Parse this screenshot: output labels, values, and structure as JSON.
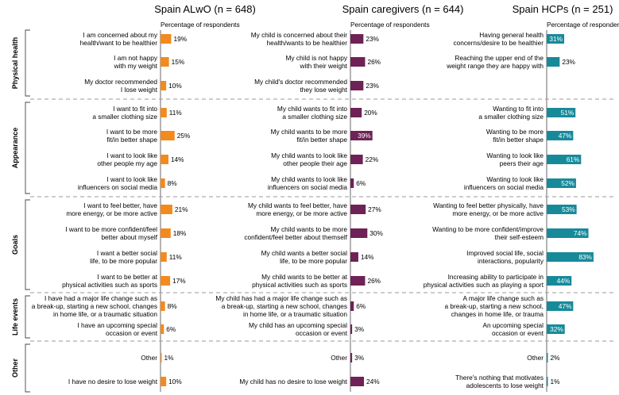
{
  "chart_data": {
    "type": "bar",
    "subtitle": "Percentage of respondents",
    "groups": [
      {
        "name": "Physical health",
        "count": 3
      },
      {
        "name": "Appearance",
        "count": 4
      },
      {
        "name": "Goals",
        "count": 4
      },
      {
        "name": "Life events",
        "count": 2
      },
      {
        "name": "Other",
        "count": 2
      }
    ],
    "panels": [
      {
        "title": "Spain ALwO (n = 648)",
        "color": "#f28a1e",
        "rows": [
          {
            "label": [
              "I am concerned about my",
              "health/want to be healthier"
            ],
            "value": 19
          },
          {
            "label": [
              "I am not happy",
              "with my weight"
            ],
            "value": 15
          },
          {
            "label": [
              "My doctor recommended",
              "I lose weight"
            ],
            "value": 10
          },
          {
            "label": [
              "I want to fit into",
              "a smaller clothing size"
            ],
            "value": 11
          },
          {
            "label": [
              "I want to be more",
              "fit/in better shape"
            ],
            "value": 25
          },
          {
            "label": [
              "I want to look like",
              "other people my age"
            ],
            "value": 14
          },
          {
            "label": [
              "I want to look like",
              "influencers on social media"
            ],
            "value": 8
          },
          {
            "label": [
              "I want to feel better, have",
              "more energy, or be more active"
            ],
            "value": 21
          },
          {
            "label": [
              "I want to be more confident/feel",
              "better about myself"
            ],
            "value": 18
          },
          {
            "label": [
              "I want a better social",
              "life, to be more popular"
            ],
            "value": 11
          },
          {
            "label": [
              "I want to be better at",
              "physical activities such as sports"
            ],
            "value": 17
          },
          {
            "label": [
              "I have had a major life change such as",
              "a break-up, starting a new school, changes",
              "in home life, or a traumatic situation"
            ],
            "value": 8
          },
          {
            "label": [
              "I have an upcoming special",
              "occasion or event"
            ],
            "value": 6
          },
          {
            "label": [
              "Other"
            ],
            "value": 1
          },
          {
            "label": [
              "I have no desire to lose weight"
            ],
            "value": 10
          }
        ]
      },
      {
        "title": "Spain caregivers (n = 644)",
        "color": "#6e2256",
        "rows": [
          {
            "label": [
              "My child is concerned about their",
              "health/wants to be healthier"
            ],
            "value": 23
          },
          {
            "label": [
              "My child is not happy",
              "with their weight"
            ],
            "value": 26
          },
          {
            "label": [
              "My child's doctor recommended",
              "they lose weight"
            ],
            "value": 23
          },
          {
            "label": [
              "My child wants to fit into",
              "a smaller clothing size"
            ],
            "value": 20
          },
          {
            "label": [
              "My child wants to be more",
              "fit/in better shape"
            ],
            "value": 39
          },
          {
            "label": [
              "My child wants to look like",
              "other people their age"
            ],
            "value": 22
          },
          {
            "label": [
              "My child wants to look like",
              "influencers on social media"
            ],
            "value": 6
          },
          {
            "label": [
              "My child wants to feel better, have",
              "more energy, or be more active"
            ],
            "value": 27
          },
          {
            "label": [
              "My child wants to be more",
              "confident/feel better about themself"
            ],
            "value": 30
          },
          {
            "label": [
              "My child wants a better social",
              "life, to be more popular"
            ],
            "value": 14
          },
          {
            "label": [
              "My child wants to be better at",
              "physical activities such as sports"
            ],
            "value": 26
          },
          {
            "label": [
              "My child has had a major life change such as",
              "a break-up, starting a new school, changes",
              "in home life, or a traumatic situation"
            ],
            "value": 6
          },
          {
            "label": [
              "My child has an upcoming special",
              "occasion or event"
            ],
            "value": 3
          },
          {
            "label": [
              "Other"
            ],
            "value": 3
          },
          {
            "label": [
              "My child has no desire to lose weight"
            ],
            "value": 24
          }
        ]
      },
      {
        "title": "Spain HCPs (n = 251)",
        "color": "#178a9a",
        "rows": [
          {
            "label": [
              "Having general health",
              "concerns/desire to be healthier"
            ],
            "value": 31
          },
          {
            "label": [
              "Reaching the upper end of the",
              "weight range they are happy with"
            ],
            "value": 23
          },
          null,
          {
            "label": [
              "Wanting to fit into",
              "a smaller clothing size"
            ],
            "value": 51
          },
          {
            "label": [
              "Wanting to be more",
              "fit/in better shape"
            ],
            "value": 47
          },
          {
            "label": [
              "Wanting to look like",
              "peers their age"
            ],
            "value": 61
          },
          {
            "label": [
              "Wanting to look like",
              "influencers on social media"
            ],
            "value": 52
          },
          {
            "label": [
              "Wanting to feel better physically, have",
              "more energy, or be more active"
            ],
            "value": 53
          },
          {
            "label": [
              "Wanting to be more confident/improve",
              "their self-esteem"
            ],
            "value": 74
          },
          {
            "label": [
              "Improved social life, social",
              "interactions, popularity"
            ],
            "value": 83
          },
          {
            "label": [
              "Increasing ability to participate in",
              "physical activities such as playing a sport"
            ],
            "value": 44
          },
          {
            "label": [
              "A major life change such as",
              "a break-up, starting a new school,",
              "changes in home life, or trauma"
            ],
            "value": 47
          },
          {
            "label": [
              "An upcoming special",
              "occasion or event"
            ],
            "value": 32
          },
          {
            "label": [
              "Other"
            ],
            "value": 2
          },
          {
            "label": [
              "There's nothing that motivates",
              "adolescents to lose weight"
            ],
            "value": 1
          }
        ]
      }
    ]
  }
}
